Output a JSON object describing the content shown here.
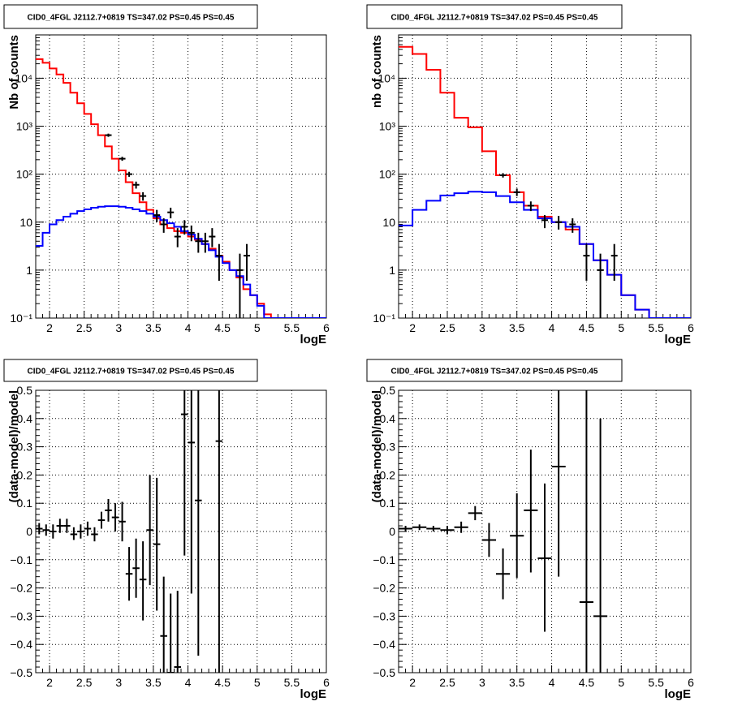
{
  "colors": {
    "total_model": "#ff0000",
    "source_model": "#0000ff",
    "data": "#000000",
    "grid": "#000000"
  },
  "chart_data": [
    {
      "type": "line",
      "subtype": "histogram-log",
      "title": "CID0_4FGL J2112.7+0819 TS=347.02 PS=0.45 PS=0.45",
      "xlabel": "logE",
      "ylabel": "Nb of counts",
      "xlim": [
        1.8,
        6.0
      ],
      "ylim": [
        0.1,
        80000
      ],
      "yscale": "log",
      "xticks": [
        "2",
        "2.5",
        "3",
        "3.5",
        "4",
        "4.5",
        "5",
        "5.5",
        "6"
      ],
      "yticks": [
        "10⁻¹",
        "1",
        "10",
        "10²",
        "10³",
        "10⁴"
      ],
      "grid": true,
      "series": [
        {
          "color": "red",
          "kind": "step",
          "x_edges": [
            1.8,
            1.9,
            2.0,
            2.1,
            2.2,
            2.3,
            2.4,
            2.5,
            2.6,
            2.7,
            2.8,
            2.9,
            3.0,
            3.1,
            3.2,
            3.3,
            3.4,
            3.5,
            3.6,
            3.7,
            3.8,
            3.9,
            4.0,
            4.1,
            4.2,
            4.3,
            4.4,
            4.5,
            4.6,
            4.7,
            4.8,
            4.9,
            5.0,
            5.1,
            5.2,
            5.3,
            5.4,
            5.5,
            5.6,
            5.7,
            5.8,
            5.9,
            6.0
          ],
          "values": [
            25000,
            21000,
            16000,
            12000,
            8000,
            5000,
            3000,
            1800,
            1100,
            650,
            380,
            210,
            120,
            68,
            40,
            26,
            18,
            12,
            9,
            7.5,
            6.5,
            6,
            5,
            4.3,
            3.5,
            2.8,
            2,
            1.5,
            1,
            0.7,
            0.4,
            0.3,
            0.2,
            0.12,
            0.1,
            0.1,
            0.1,
            0.1,
            0.1,
            0.1,
            0.1,
            0.1
          ]
        },
        {
          "color": "blue",
          "kind": "step",
          "x_edges": [
            1.8,
            1.9,
            2.0,
            2.1,
            2.2,
            2.3,
            2.4,
            2.5,
            2.6,
            2.7,
            2.8,
            2.9,
            3.0,
            3.1,
            3.2,
            3.3,
            3.4,
            3.5,
            3.6,
            3.7,
            3.8,
            3.9,
            4.0,
            4.1,
            4.2,
            4.3,
            4.4,
            4.5,
            4.6,
            4.7,
            4.8,
            4.9,
            5.0,
            5.1,
            5.2,
            5.3,
            5.4,
            5.5,
            5.6,
            5.7,
            5.8,
            5.9,
            6.0
          ],
          "values": [
            3.2,
            6,
            9,
            11,
            13,
            15,
            17,
            18.5,
            20,
            21,
            21.5,
            21.5,
            21,
            20,
            18.5,
            17,
            15,
            13,
            11,
            9.5,
            8,
            6.5,
            5.5,
            4.5,
            3.5,
            2.6,
            1.9,
            1.4,
            1,
            0.75,
            0.5,
            0.3,
            0.18,
            0.1,
            0.1,
            0.1,
            0.1,
            0.1,
            0.1,
            0.1,
            0.1,
            0.1
          ]
        },
        {
          "color": "black",
          "kind": "points",
          "points": [
            {
              "x": 2.85,
              "y": 650,
              "ylo": 600,
              "yhi": 700
            },
            {
              "x": 3.05,
              "y": 210,
              "ylo": 190,
              "yhi": 230
            },
            {
              "x": 3.15,
              "y": 100,
              "ylo": 88,
              "yhi": 112
            },
            {
              "x": 3.25,
              "y": 60,
              "ylo": 50,
              "yhi": 70
            },
            {
              "x": 3.35,
              "y": 35,
              "ylo": 28,
              "yhi": 42
            },
            {
              "x": 3.55,
              "y": 14,
              "ylo": 10,
              "yhi": 18
            },
            {
              "x": 3.65,
              "y": 9,
              "ylo": 6,
              "yhi": 12
            },
            {
              "x": 3.75,
              "y": 16,
              "ylo": 12,
              "yhi": 20
            },
            {
              "x": 3.85,
              "y": 5,
              "ylo": 3,
              "yhi": 7.5
            },
            {
              "x": 3.95,
              "y": 8,
              "ylo": 5.5,
              "yhi": 11
            },
            {
              "x": 4.05,
              "y": 6,
              "ylo": 4,
              "yhi": 8.5
            },
            {
              "x": 4.15,
              "y": 4,
              "ylo": 2.3,
              "yhi": 6
            },
            {
              "x": 4.25,
              "y": 4,
              "ylo": 2.3,
              "yhi": 6
            },
            {
              "x": 4.35,
              "y": 5,
              "ylo": 3,
              "yhi": 7.5
            },
            {
              "x": 4.45,
              "y": 2,
              "ylo": 0.6,
              "yhi": 3.5
            },
            {
              "x": 4.75,
              "y": 1,
              "ylo": 0.1,
              "yhi": 2.2
            },
            {
              "x": 4.85,
              "y": 2,
              "ylo": 0.6,
              "yhi": 3.5
            }
          ]
        }
      ]
    },
    {
      "type": "line",
      "subtype": "histogram-log",
      "title": "CID0_4FGL J2112.7+0819 TS=347.02 PS=0.45 PS=0.45",
      "xlabel": "logE",
      "ylabel": "nb of counts",
      "xlim": [
        1.8,
        6.0
      ],
      "ylim": [
        0.1,
        80000
      ],
      "yscale": "log",
      "xticks": [
        "2",
        "2.5",
        "3",
        "3.5",
        "4",
        "4.5",
        "5",
        "5.5",
        "6"
      ],
      "yticks": [
        "10⁻¹",
        "1",
        "10",
        "10²",
        "10³",
        "10⁴"
      ],
      "grid": true,
      "series": [
        {
          "color": "red",
          "kind": "step",
          "x_edges": [
            1.8,
            2.0,
            2.2,
            2.4,
            2.6,
            2.8,
            3.0,
            3.2,
            3.4,
            3.6,
            3.8,
            4.0,
            4.2,
            4.4,
            4.6,
            4.8,
            5.0,
            5.2,
            5.4,
            5.6,
            5.8,
            6.0
          ],
          "values": [
            45000,
            32000,
            15000,
            5000,
            1500,
            950,
            300,
            95,
            42,
            22,
            13,
            10,
            7,
            3.5,
            1.6,
            0.8,
            0.3,
            0.15,
            0.1,
            0.1,
            0.1
          ]
        },
        {
          "color": "blue",
          "kind": "step",
          "x_edges": [
            1.8,
            2.0,
            2.2,
            2.4,
            2.6,
            2.8,
            3.0,
            3.2,
            3.4,
            3.6,
            3.8,
            4.0,
            4.2,
            4.4,
            4.6,
            4.8,
            5.0,
            5.2,
            5.4,
            5.6,
            5.8,
            6.0
          ],
          "values": [
            8.5,
            18,
            28,
            36,
            40,
            43,
            42,
            35,
            26,
            18,
            12,
            10,
            8,
            3.5,
            1.6,
            0.8,
            0.3,
            0.15,
            0.1,
            0.1,
            0.1
          ]
        },
        {
          "color": "black",
          "kind": "points",
          "points": [
            {
              "x": 3.3,
              "y": 95,
              "ylo": 85,
              "yhi": 105
            },
            {
              "x": 3.5,
              "y": 42,
              "ylo": 35,
              "yhi": 50
            },
            {
              "x": 3.7,
              "y": 22,
              "ylo": 17,
              "yhi": 27
            },
            {
              "x": 3.9,
              "y": 11,
              "ylo": 7.5,
              "yhi": 14
            },
            {
              "x": 4.1,
              "y": 10,
              "ylo": 7,
              "yhi": 13.5
            },
            {
              "x": 4.3,
              "y": 9,
              "ylo": 6,
              "yhi": 12
            },
            {
              "x": 4.5,
              "y": 2,
              "ylo": 0.6,
              "yhi": 3.5
            },
            {
              "x": 4.7,
              "y": 1,
              "ylo": 0.1,
              "yhi": 2.2
            },
            {
              "x": 4.9,
              "y": 2,
              "ylo": 0.6,
              "yhi": 3.5
            }
          ]
        }
      ]
    },
    {
      "type": "scatter",
      "subtype": "residuals",
      "title": "CID0_4FGL J2112.7+0819 TS=347.02 PS=0.45 PS=0.45",
      "xlabel": "logE",
      "ylabel": "(data-model)/model",
      "xlim": [
        1.8,
        6.0
      ],
      "ylim": [
        -0.5,
        0.5
      ],
      "xticks": [
        "2",
        "2.5",
        "3",
        "3.5",
        "4",
        "4.5",
        "5",
        "5.5",
        "6"
      ],
      "yticks": [
        "−0.5",
        "−0.4",
        "−0.3",
        "−0.2",
        "−0.1",
        "0",
        "0.1",
        "0.2",
        "0.3",
        "0.4",
        "0.5"
      ],
      "grid": true,
      "xerr": 0.05,
      "points": [
        {
          "x": 1.85,
          "y": 0.01,
          "ylo": -0.01,
          "yhi": 0.03
        },
        {
          "x": 1.95,
          "y": 0.005,
          "ylo": -0.015,
          "yhi": 0.025
        },
        {
          "x": 2.05,
          "y": 0.0,
          "ylo": -0.025,
          "yhi": 0.025
        },
        {
          "x": 2.15,
          "y": 0.02,
          "ylo": -0.005,
          "yhi": 0.045
        },
        {
          "x": 2.25,
          "y": 0.02,
          "ylo": -0.005,
          "yhi": 0.045
        },
        {
          "x": 2.35,
          "y": -0.01,
          "ylo": -0.03,
          "yhi": 0.015
        },
        {
          "x": 2.45,
          "y": 0.0,
          "ylo": -0.025,
          "yhi": 0.025
        },
        {
          "x": 2.55,
          "y": 0.01,
          "ylo": -0.015,
          "yhi": 0.035
        },
        {
          "x": 2.65,
          "y": -0.01,
          "ylo": -0.035,
          "yhi": 0.015
        },
        {
          "x": 2.75,
          "y": 0.04,
          "ylo": 0.01,
          "yhi": 0.07
        },
        {
          "x": 2.85,
          "y": 0.075,
          "ylo": 0.035,
          "yhi": 0.115
        },
        {
          "x": 2.95,
          "y": 0.05,
          "ylo": 0.0,
          "yhi": 0.1
        },
        {
          "x": 3.05,
          "y": 0.035,
          "ylo": -0.035,
          "yhi": 0.105
        },
        {
          "x": 3.15,
          "y": -0.15,
          "ylo": -0.245,
          "yhi": -0.055
        },
        {
          "x": 3.25,
          "y": -0.13,
          "ylo": -0.235,
          "yhi": -0.025
        },
        {
          "x": 3.35,
          "y": -0.17,
          "ylo": -0.315,
          "yhi": -0.035
        },
        {
          "x": 3.45,
          "y": 0.005,
          "ylo": -0.19,
          "yhi": 0.2
        },
        {
          "x": 3.55,
          "y": -0.045,
          "ylo": -0.28,
          "yhi": 0.19
        },
        {
          "x": 3.65,
          "y": -0.37,
          "ylo": -0.5,
          "yhi": -0.16
        },
        {
          "x": 3.75,
          "y": -0.55,
          "ylo": -0.5,
          "yhi": -0.22
        },
        {
          "x": 3.85,
          "y": -0.48,
          "ylo": -0.5,
          "yhi": -0.21
        },
        {
          "x": 3.95,
          "y": 0.415,
          "ylo": -0.085,
          "yhi": 0.5
        },
        {
          "x": 4.05,
          "y": 0.315,
          "ylo": -0.22,
          "yhi": 0.5
        },
        {
          "x": 4.15,
          "y": 0.11,
          "ylo": -0.44,
          "yhi": 0.5
        },
        {
          "x": 4.45,
          "y": 0.32,
          "ylo": -0.5,
          "yhi": 0.5
        }
      ]
    },
    {
      "type": "scatter",
      "subtype": "residuals",
      "title": "CID0_4FGL J2112.7+0819 TS=347.02 PS=0.45 PS=0.45",
      "xlabel": "logE",
      "ylabel": "(data-model)/model",
      "xlim": [
        1.8,
        6.0
      ],
      "ylim": [
        -0.5,
        0.5
      ],
      "xticks": [
        "2",
        "2.5",
        "3",
        "3.5",
        "4",
        "4.5",
        "5",
        "5.5",
        "6"
      ],
      "yticks": [
        "−0.5",
        "−0.4",
        "−0.3",
        "−0.2",
        "−0.1",
        "0",
        "0.1",
        "0.2",
        "0.3",
        "0.4",
        "0.5"
      ],
      "grid": true,
      "xerr": 0.1,
      "points": [
        {
          "x": 1.9,
          "y": 0.01,
          "ylo": 0.0,
          "yhi": 0.02
        },
        {
          "x": 2.1,
          "y": 0.015,
          "ylo": 0.005,
          "yhi": 0.025
        },
        {
          "x": 2.3,
          "y": 0.01,
          "ylo": 0.0,
          "yhi": 0.02
        },
        {
          "x": 2.5,
          "y": 0.005,
          "ylo": -0.01,
          "yhi": 0.02
        },
        {
          "x": 2.7,
          "y": 0.015,
          "ylo": -0.005,
          "yhi": 0.035
        },
        {
          "x": 2.9,
          "y": 0.065,
          "ylo": 0.04,
          "yhi": 0.09
        },
        {
          "x": 3.1,
          "y": -0.03,
          "ylo": -0.09,
          "yhi": 0.03
        },
        {
          "x": 3.3,
          "y": -0.15,
          "ylo": -0.24,
          "yhi": -0.06
        },
        {
          "x": 3.5,
          "y": -0.015,
          "ylo": -0.165,
          "yhi": 0.135
        },
        {
          "x": 3.7,
          "y": 0.075,
          "ylo": -0.145,
          "yhi": 0.29
        },
        {
          "x": 3.9,
          "y": -0.095,
          "ylo": -0.355,
          "yhi": 0.17
        },
        {
          "x": 4.1,
          "y": 0.23,
          "ylo": -0.16,
          "yhi": 0.5
        },
        {
          "x": 4.5,
          "y": -0.25,
          "ylo": -0.5,
          "yhi": 0.5
        },
        {
          "x": 4.7,
          "y": -0.3,
          "ylo": -0.5,
          "yhi": 0.4
        }
      ]
    }
  ]
}
